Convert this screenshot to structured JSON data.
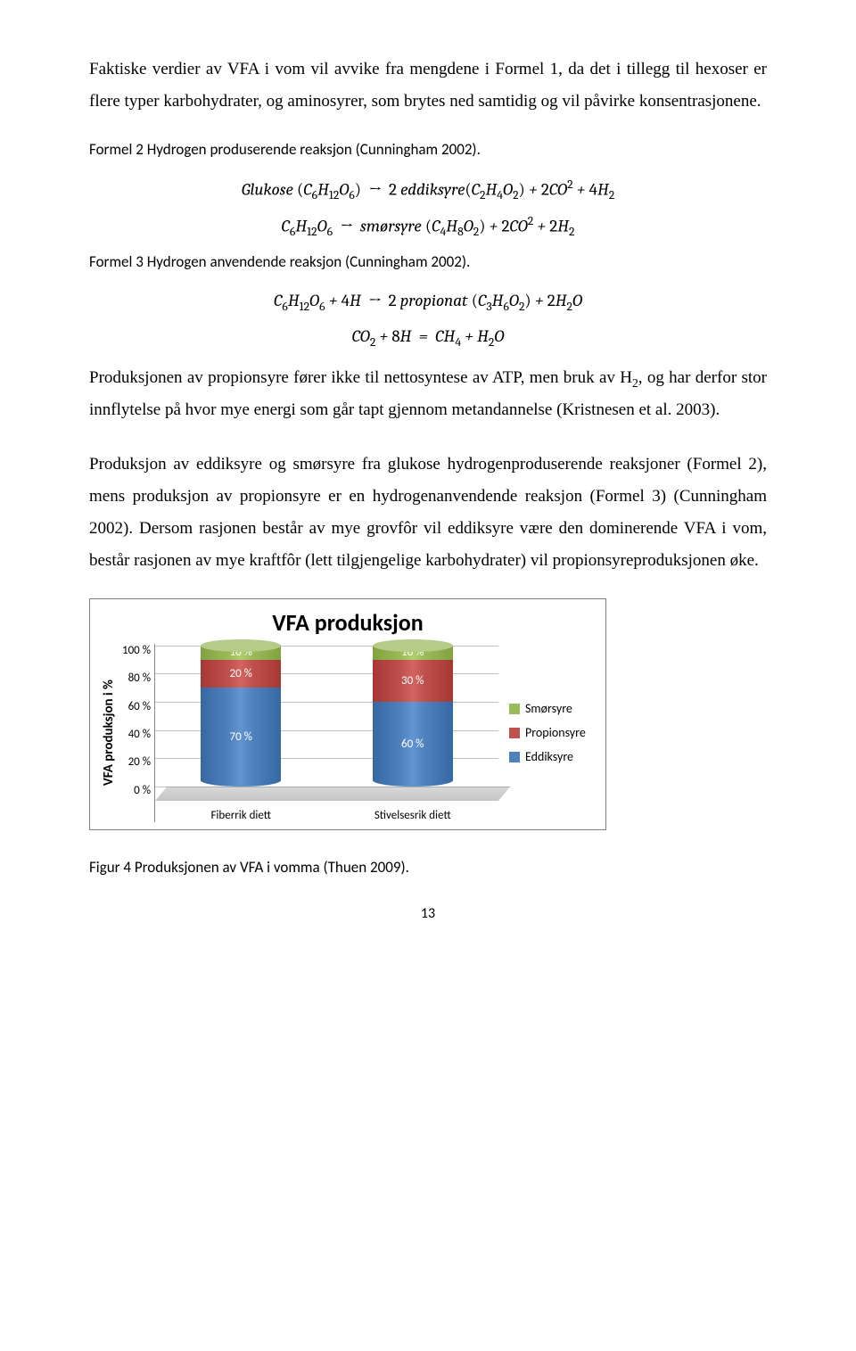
{
  "para1": "Faktiske verdier av VFA i vom vil avvike fra mengdene i Formel 1, da det i tillegg til hexoser er flere typer karbohydrater, og aminosyrer, som brytes ned samtidig og vil påvirke konsentrasjonene.",
  "caption_formel2": "Formel 2 Hydrogen produserende reaksjon (Cunningham 2002).",
  "caption_formel3": "Formel 3 Hydrogen anvendende reaksjon (Cunningham 2002).",
  "para2_a": "Produksjonen av propionsyre fører ikke til nettosyntese av ATP, men bruk av H",
  "para2_b": ", og har derfor stor innflytelse på hvor mye energi som går tapt gjennom metandannelse (Kristnesen et al. 2003).",
  "para3": "Produksjon av eddiksyre og smørsyre fra glukose hydrogenproduserende reaksjoner (Formel 2), mens produksjon av propionsyre er en hydrogenanvendende reaksjon (Formel 3) (Cunningham 2002). Dersom rasjonen består av mye grovfôr vil eddiksyre være den dominerende VFA i vom, består rasjonen av mye kraftfôr (lett tilgjengelige karbohydrater) vil propionsyreproduksjonen øke.",
  "fig_caption": "Figur 4 Produksjonen av VFA i vomma (Thuen 2009).",
  "page_number": "13",
  "chart": {
    "title": "VFA produksjon",
    "y_axis_label": "VFA produksjon i %",
    "y_ticks": [
      "100 %",
      "80 %",
      "60 %",
      "40 %",
      "20 %",
      "0 %"
    ],
    "categories": [
      "Fiberrik diett",
      "Stivelsesrik diett"
    ],
    "series": [
      {
        "name": "Smørsyre",
        "color": "#9bbb59"
      },
      {
        "name": "Propionsyre",
        "color": "#c0504d"
      },
      {
        "name": "Eddiksyre",
        "color": "#4f81bd"
      }
    ],
    "top_ellipse_color": "#b6cb8a",
    "bars": [
      {
        "segments": [
          {
            "label": "10 %",
            "value": 10,
            "color": "#9bbb59"
          },
          {
            "label": "20 %",
            "value": 20,
            "color": "#c0504d"
          },
          {
            "label": "70 %",
            "value": 70,
            "color": "#4f81bd"
          }
        ]
      },
      {
        "segments": [
          {
            "label": "10 %",
            "value": 10,
            "color": "#9bbb59"
          },
          {
            "label": "30 %",
            "value": 30,
            "color": "#c0504d"
          },
          {
            "label": "60 %",
            "value": 60,
            "color": "#4f81bd"
          }
        ]
      }
    ],
    "grid_color": "#bfbfbf"
  }
}
